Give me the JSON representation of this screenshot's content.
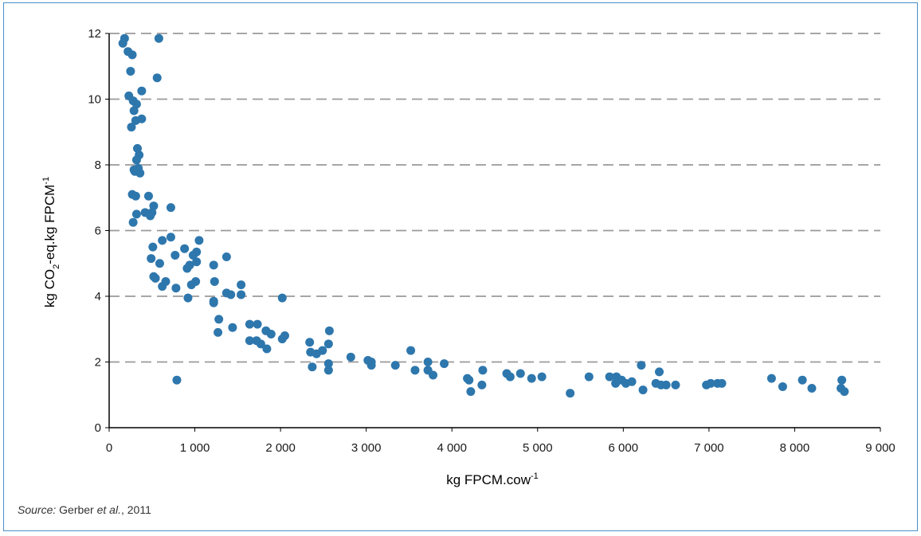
{
  "chart_data": {
    "type": "scatter",
    "xlabel": "kg FPCM.cow",
    "xlabel_sup": "-1",
    "ylabel_pre": "kg CO",
    "ylabel_sub": "2",
    "ylabel_post": "-eq.kg FPCM",
    "ylabel_sup": "-1",
    "xlim": [
      0,
      9000
    ],
    "ylim": [
      0,
      12
    ],
    "xticks": [
      0,
      1000,
      2000,
      3000,
      4000,
      5000,
      6000,
      7000,
      8000,
      9000
    ],
    "xtick_labels": [
      "0",
      "1 000",
      "2 000",
      "3 000",
      "4 000",
      "5 000",
      "6 000",
      "7 000",
      "8 000",
      "9 000"
    ],
    "yticks": [
      0,
      2,
      4,
      6,
      8,
      10,
      12
    ],
    "ytick_labels": [
      "0",
      "2",
      "4",
      "6",
      "8",
      "10",
      "12"
    ],
    "grid": "horizontal dashed",
    "marker_color": "#2e77ad",
    "points": [
      [
        180,
        11.85
      ],
      [
        220,
        11.45
      ],
      [
        270,
        11.35
      ],
      [
        160,
        11.7
      ],
      [
        580,
        11.85
      ],
      [
        560,
        10.65
      ],
      [
        250,
        10.85
      ],
      [
        380,
        10.25
      ],
      [
        230,
        10.1
      ],
      [
        280,
        9.95
      ],
      [
        320,
        9.85
      ],
      [
        290,
        9.65
      ],
      [
        380,
        9.4
      ],
      [
        310,
        9.35
      ],
      [
        260,
        9.15
      ],
      [
        330,
        8.5
      ],
      [
        350,
        8.3
      ],
      [
        320,
        8.15
      ],
      [
        290,
        7.85
      ],
      [
        340,
        7.9
      ],
      [
        360,
        7.75
      ],
      [
        300,
        7.8
      ],
      [
        270,
        7.1
      ],
      [
        310,
        7.05
      ],
      [
        460,
        7.05
      ],
      [
        720,
        6.7
      ],
      [
        520,
        6.75
      ],
      [
        500,
        6.55
      ],
      [
        420,
        6.55
      ],
      [
        480,
        6.45
      ],
      [
        320,
        6.5
      ],
      [
        280,
        6.25
      ],
      [
        720,
        5.8
      ],
      [
        620,
        5.7
      ],
      [
        1050,
        5.7
      ],
      [
        510,
        5.5
      ],
      [
        880,
        5.45
      ],
      [
        1020,
        5.35
      ],
      [
        980,
        5.25
      ],
      [
        770,
        5.25
      ],
      [
        490,
        5.15
      ],
      [
        1370,
        5.2
      ],
      [
        1020,
        5.05
      ],
      [
        940,
        4.95
      ],
      [
        910,
        4.85
      ],
      [
        1220,
        4.95
      ],
      [
        590,
        5.0
      ],
      [
        1230,
        4.45
      ],
      [
        1010,
        4.45
      ],
      [
        1540,
        4.35
      ],
      [
        520,
        4.6
      ],
      [
        540,
        4.55
      ],
      [
        660,
        4.45
      ],
      [
        620,
        4.3
      ],
      [
        960,
        4.35
      ],
      [
        780,
        4.25
      ],
      [
        1370,
        4.1
      ],
      [
        1420,
        4.05
      ],
      [
        1540,
        4.05
      ],
      [
        2020,
        3.95
      ],
      [
        920,
        3.95
      ],
      [
        1220,
        3.85
      ],
      [
        1220,
        3.8
      ],
      [
        1280,
        3.3
      ],
      [
        1440,
        3.05
      ],
      [
        1640,
        3.15
      ],
      [
        1730,
        3.15
      ],
      [
        1830,
        2.95
      ],
      [
        1890,
        2.85
      ],
      [
        2570,
        2.95
      ],
      [
        1270,
        2.9
      ],
      [
        2050,
        2.8
      ],
      [
        2020,
        2.7
      ],
      [
        1640,
        2.65
      ],
      [
        1720,
        2.65
      ],
      [
        1770,
        2.55
      ],
      [
        1840,
        2.4
      ],
      [
        2340,
        2.6
      ],
      [
        2560,
        2.55
      ],
      [
        2350,
        2.3
      ],
      [
        2420,
        2.25
      ],
      [
        2490,
        2.35
      ],
      [
        3520,
        2.35
      ],
      [
        2820,
        2.15
      ],
      [
        3020,
        2.05
      ],
      [
        3060,
        2.0
      ],
      [
        3060,
        1.9
      ],
      [
        3340,
        1.9
      ],
      [
        3720,
        2.0
      ],
      [
        3910,
        1.95
      ],
      [
        2560,
        1.95
      ],
      [
        2370,
        1.85
      ],
      [
        2560,
        1.75
      ],
      [
        3570,
        1.75
      ],
      [
        3720,
        1.75
      ],
      [
        3780,
        1.6
      ],
      [
        4180,
        1.5
      ],
      [
        4200,
        1.45
      ],
      [
        4360,
        1.75
      ],
      [
        4640,
        1.65
      ],
      [
        4680,
        1.55
      ],
      [
        4800,
        1.65
      ],
      [
        4930,
        1.5
      ],
      [
        5050,
        1.55
      ],
      [
        4350,
        1.3
      ],
      [
        4220,
        1.1
      ],
      [
        5380,
        1.05
      ],
      [
        5600,
        1.55
      ],
      [
        5840,
        1.55
      ],
      [
        5920,
        1.55
      ],
      [
        5980,
        1.45
      ],
      [
        6100,
        1.4
      ],
      [
        5910,
        1.35
      ],
      [
        6030,
        1.35
      ],
      [
        6210,
        1.9
      ],
      [
        6420,
        1.7
      ],
      [
        6380,
        1.35
      ],
      [
        6500,
        1.3
      ],
      [
        6610,
        1.3
      ],
      [
        6440,
        1.3
      ],
      [
        6230,
        1.15
      ],
      [
        6970,
        1.3
      ],
      [
        7020,
        1.35
      ],
      [
        7100,
        1.35
      ],
      [
        7150,
        1.35
      ],
      [
        7730,
        1.5
      ],
      [
        7860,
        1.25
      ],
      [
        8090,
        1.45
      ],
      [
        8200,
        1.2
      ],
      [
        8550,
        1.45
      ],
      [
        8540,
        1.2
      ],
      [
        8580,
        1.1
      ],
      [
        790,
        1.45
      ]
    ]
  },
  "source": {
    "label": "Source:",
    "authors": "Gerber",
    "etal": "et al.",
    "year": ", 2011"
  }
}
